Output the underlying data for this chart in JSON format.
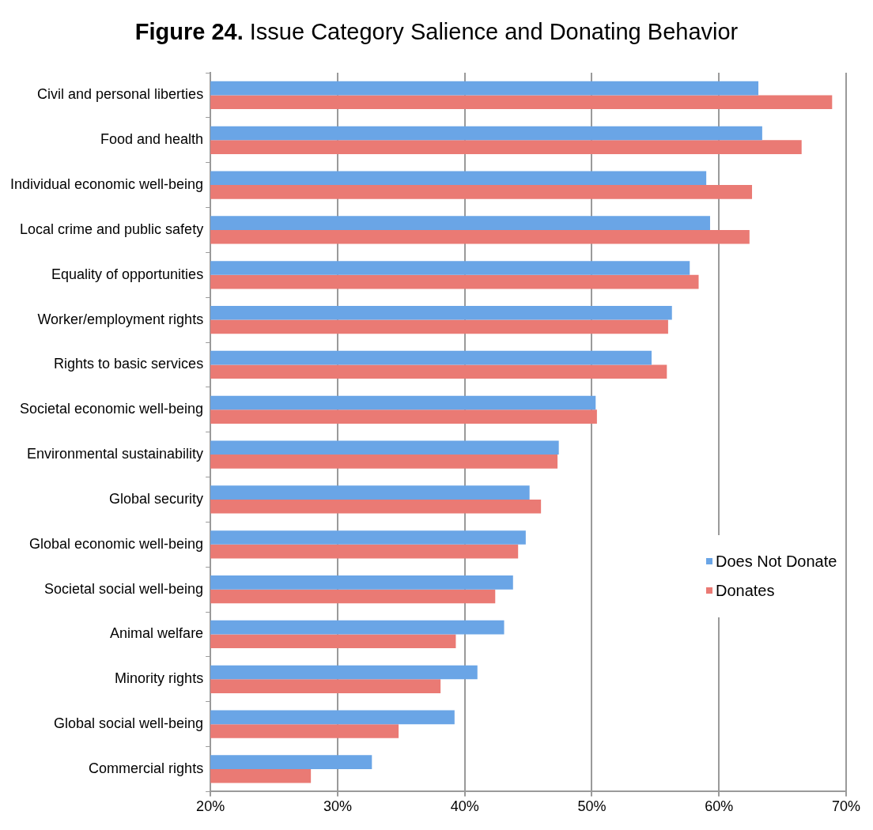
{
  "chart_data": {
    "type": "bar",
    "orientation": "horizontal",
    "title": "Figure 24. Issue Category Salience and Donating Behavior",
    "categories": [
      "Civil and personal liberties",
      "Food and health",
      "Individual economic well-being",
      "Local crime and public safety",
      "Equality of opportunities",
      "Worker/employment rights",
      "Rights to basic services",
      "Societal economic well-being",
      "Environmental sustainability",
      "Global security",
      "Global economic well-being",
      "Societal social well-being",
      "Animal welfare",
      "Minority rights",
      "Global social well-being",
      "Commercial rights"
    ],
    "series": [
      {
        "name": "Does Not Donate",
        "color": "#6aa5e6",
        "values": [
          63.1,
          63.4,
          59.0,
          59.3,
          57.7,
          56.3,
          54.7,
          50.3,
          47.4,
          45.1,
          44.8,
          43.8,
          43.1,
          41.0,
          39.2,
          32.7
        ]
      },
      {
        "name": "Donates",
        "color": "#ea7a74",
        "values": [
          68.9,
          66.5,
          62.6,
          62.4,
          58.4,
          56.0,
          55.9,
          50.4,
          47.3,
          46.0,
          44.2,
          42.4,
          39.3,
          38.1,
          34.8,
          27.9
        ]
      }
    ],
    "xlim": [
      20,
      70
    ],
    "xticks": [
      {
        "value": 20,
        "label": "20%"
      },
      {
        "value": 30,
        "label": "30%"
      },
      {
        "value": 40,
        "label": "40%"
      },
      {
        "value": 50,
        "label": "50%"
      },
      {
        "value": 60,
        "label": "60%"
      },
      {
        "value": 70,
        "label": "70%"
      }
    ],
    "grid": "x",
    "legend": "right"
  }
}
